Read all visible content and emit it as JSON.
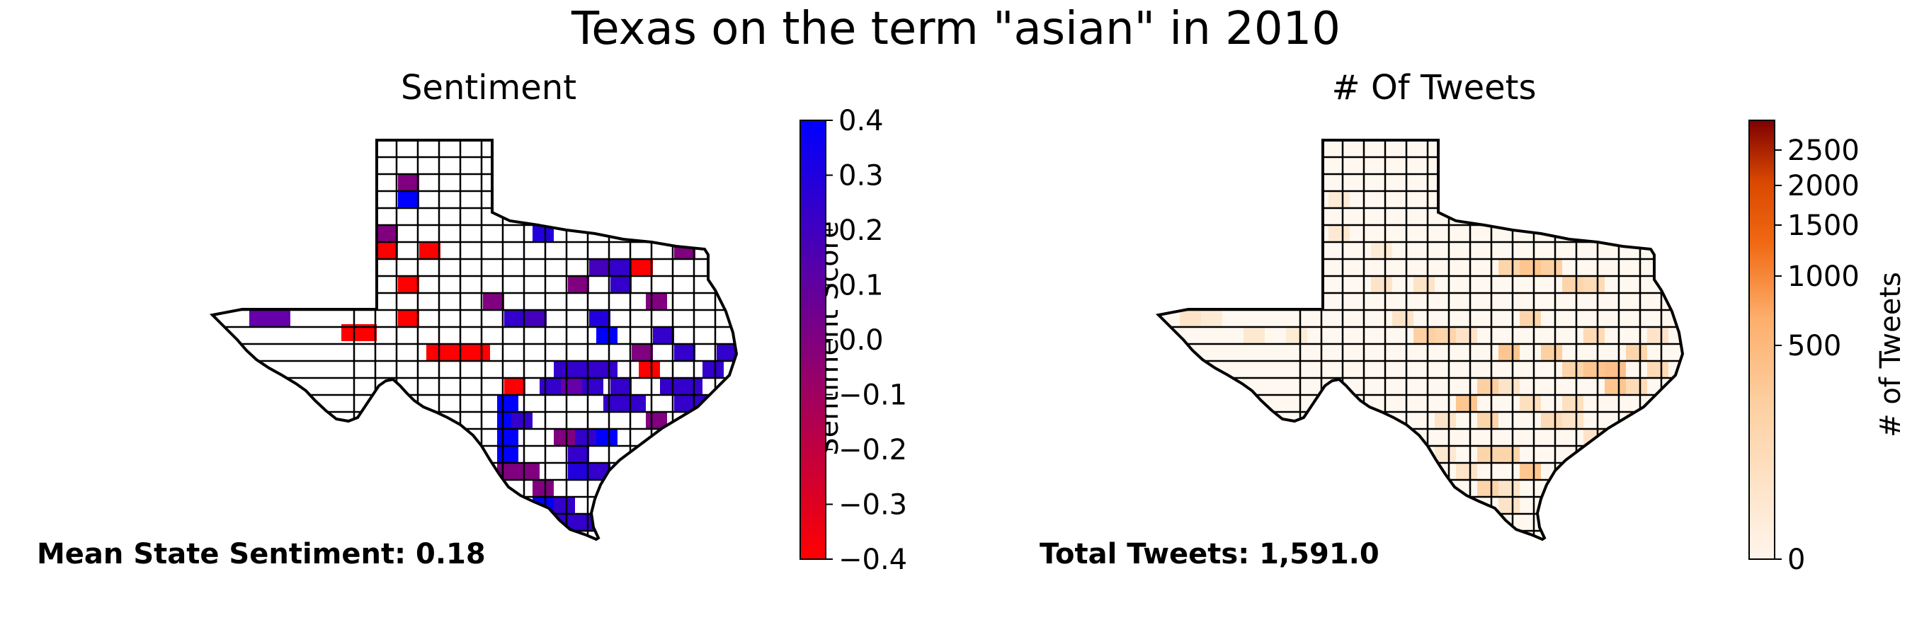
{
  "figure": {
    "title": "Texas on the term \"asian\" in 2010"
  },
  "left_panel": {
    "title": "Sentiment",
    "footer": "Mean State Sentiment: 0.18",
    "colorbar": {
      "label": "Sentiment Score",
      "ticks": [
        "0.4",
        "0.3",
        "0.2",
        "0.1",
        "0.0",
        "−0.1",
        "−0.2",
        "−0.3",
        "−0.4"
      ],
      "range": [
        -0.4,
        0.4
      ],
      "colors": [
        "#ff0000",
        "#800080",
        "#0000ff"
      ]
    },
    "map": {
      "region": "Texas counties",
      "no_data_color": "#ffffff",
      "border_color": "#000000"
    }
  },
  "right_panel": {
    "title": "# Of Tweets",
    "footer": "Total Tweets: 1,591.0",
    "colorbar": {
      "label": "# of Tweets",
      "ticks": [
        "2500",
        "2000",
        "1500",
        "1000",
        "500",
        "0"
      ],
      "colors": [
        "#fff5eb",
        "#fdae6b",
        "#e6550d",
        "#7f0000"
      ]
    },
    "map": {
      "region": "Texas counties",
      "border_color": "#000000"
    }
  }
}
